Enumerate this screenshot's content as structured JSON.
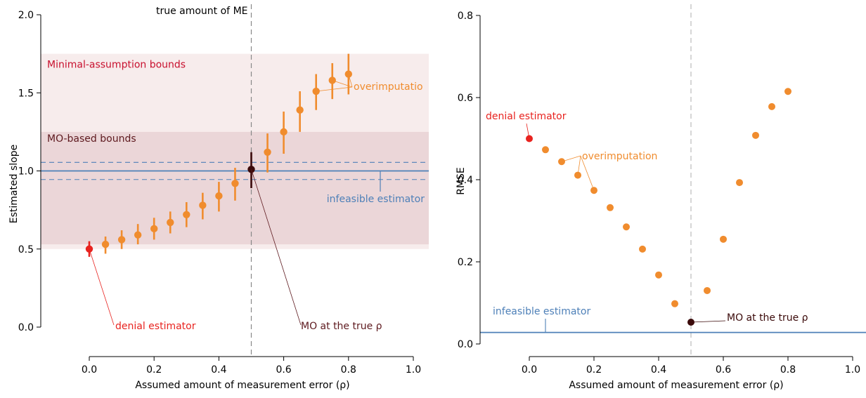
{
  "colors": {
    "orange": "#f08c2e",
    "red": "#e8231f",
    "dark": "#3b0a0a",
    "blue": "#4e80b8",
    "band_outer": "#f7ecec",
    "band_inner": "#ebd6d8",
    "label_red": "#c8102e",
    "label_dark": "#5e1a1f"
  },
  "chart_data": [
    {
      "type": "scatter",
      "panel": "left",
      "xlabel": "Assumed amount of measurement error (ρ)",
      "ylabel": "Estimated slope",
      "xlim": [
        -0.15,
        1.05
      ],
      "ylim": [
        0,
        2
      ],
      "xticks": [
        "0.0",
        "0.2",
        "0.4",
        "0.6",
        "0.8",
        "1.0"
      ],
      "yticks": [
        "0.0",
        "0.5",
        "1.0",
        "1.5",
        "2.0"
      ],
      "true_me_line_x": 0.5,
      "true_me_label": "true amount of ME",
      "bands": [
        {
          "label": "Minimal-assumption bounds",
          "ymin": 0.5,
          "ymax": 1.75
        },
        {
          "label": "MO-based bounds",
          "ymin": 0.53,
          "ymax": 1.25
        }
      ],
      "infeasible": {
        "label": "infeasible estimator",
        "y": 1.0,
        "ci": [
          0.945,
          1.055
        ]
      },
      "points": [
        {
          "x": 0.0,
          "y": 0.5,
          "lo": 0.45,
          "hi": 0.55,
          "kind": "denial"
        },
        {
          "x": 0.05,
          "y": 0.53,
          "lo": 0.47,
          "hi": 0.58,
          "kind": "over"
        },
        {
          "x": 0.1,
          "y": 0.56,
          "lo": 0.5,
          "hi": 0.62,
          "kind": "over"
        },
        {
          "x": 0.15,
          "y": 0.59,
          "lo": 0.53,
          "hi": 0.66,
          "kind": "over"
        },
        {
          "x": 0.2,
          "y": 0.63,
          "lo": 0.56,
          "hi": 0.7,
          "kind": "over"
        },
        {
          "x": 0.25,
          "y": 0.67,
          "lo": 0.6,
          "hi": 0.74,
          "kind": "over"
        },
        {
          "x": 0.3,
          "y": 0.72,
          "lo": 0.64,
          "hi": 0.8,
          "kind": "over"
        },
        {
          "x": 0.35,
          "y": 0.78,
          "lo": 0.69,
          "hi": 0.86,
          "kind": "over"
        },
        {
          "x": 0.4,
          "y": 0.84,
          "lo": 0.74,
          "hi": 0.93,
          "kind": "over"
        },
        {
          "x": 0.45,
          "y": 0.92,
          "lo": 0.81,
          "hi": 1.02,
          "kind": "over"
        },
        {
          "x": 0.5,
          "y": 1.01,
          "lo": 0.89,
          "hi": 1.12,
          "kind": "mo"
        },
        {
          "x": 0.55,
          "y": 1.12,
          "lo": 0.99,
          "hi": 1.24,
          "kind": "over"
        },
        {
          "x": 0.6,
          "y": 1.25,
          "lo": 1.11,
          "hi": 1.38,
          "kind": "over"
        },
        {
          "x": 0.65,
          "y": 1.39,
          "lo": 1.25,
          "hi": 1.51,
          "kind": "over"
        },
        {
          "x": 0.7,
          "y": 1.51,
          "lo": 1.39,
          "hi": 1.62,
          "kind": "over"
        },
        {
          "x": 0.75,
          "y": 1.58,
          "lo": 1.46,
          "hi": 1.69,
          "kind": "over"
        },
        {
          "x": 0.8,
          "y": 1.62,
          "lo": 1.49,
          "hi": 1.75,
          "kind": "over"
        }
      ],
      "annotations": {
        "denial": "denial estimator",
        "overimputation": "overimputatio",
        "mo": "MO at the true ρ"
      }
    },
    {
      "type": "scatter",
      "panel": "right",
      "xlabel": "Assumed amount of measurement error (ρ)",
      "ylabel": "RMSE",
      "xlim": [
        -0.15,
        1.05
      ],
      "ylim": [
        0,
        0.8
      ],
      "xticks": [
        "0.0",
        "0.2",
        "0.4",
        "0.6",
        "0.8",
        "1.0"
      ],
      "yticks": [
        "0.0",
        "0.2",
        "0.4",
        "0.6",
        "0.8"
      ],
      "true_me_line_x": 0.5,
      "infeasible": {
        "label": "infeasible estimator",
        "y": 0.028
      },
      "points": [
        {
          "x": 0.0,
          "y": 0.5,
          "kind": "denial"
        },
        {
          "x": 0.05,
          "y": 0.473,
          "kind": "over"
        },
        {
          "x": 0.1,
          "y": 0.444,
          "kind": "over"
        },
        {
          "x": 0.15,
          "y": 0.411,
          "kind": "over"
        },
        {
          "x": 0.2,
          "y": 0.374,
          "kind": "over"
        },
        {
          "x": 0.25,
          "y": 0.332,
          "kind": "over"
        },
        {
          "x": 0.3,
          "y": 0.285,
          "kind": "over"
        },
        {
          "x": 0.35,
          "y": 0.231,
          "kind": "over"
        },
        {
          "x": 0.4,
          "y": 0.168,
          "kind": "over"
        },
        {
          "x": 0.45,
          "y": 0.098,
          "kind": "over"
        },
        {
          "x": 0.5,
          "y": 0.053,
          "kind": "mo"
        },
        {
          "x": 0.55,
          "y": 0.13,
          "kind": "over"
        },
        {
          "x": 0.6,
          "y": 0.255,
          "kind": "over"
        },
        {
          "x": 0.65,
          "y": 0.393,
          "kind": "over"
        },
        {
          "x": 0.7,
          "y": 0.508,
          "kind": "over"
        },
        {
          "x": 0.75,
          "y": 0.578,
          "kind": "over"
        },
        {
          "x": 0.8,
          "y": 0.615,
          "kind": "over"
        }
      ],
      "annotations": {
        "denial": "denial estimator",
        "overimputation": "overimputation",
        "mo": "MO at the true ρ"
      }
    }
  ]
}
